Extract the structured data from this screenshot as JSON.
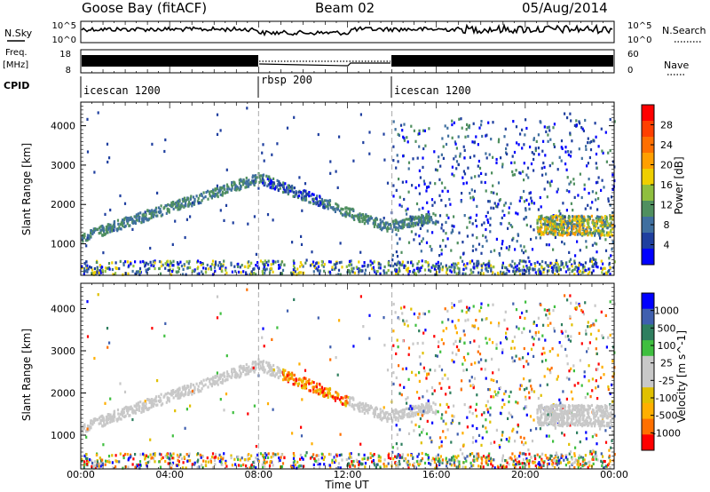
{
  "header": {
    "station": "Goose Bay (fitACF)",
    "beam": "Beam 02",
    "date": "05/Aug/2014"
  },
  "labels": {
    "nsky": "N.Sky",
    "freq": "Freq.",
    "mhz": "[MHz]",
    "cpid": "CPID",
    "nsearch": "N.Search",
    "nave": "Nave",
    "sky_top": "10^5",
    "sky_bot": "10^0",
    "search_top": "10^5",
    "search_bot": "10^0",
    "freq_top": "18",
    "freq_bot": "8",
    "nave_top": "60",
    "nave_bot": "0",
    "cpid_segments": [
      "icescan 1200",
      "rbsp 200",
      "icescan 1200"
    ],
    "xaxis_title": "Time UT"
  },
  "colors": {
    "power": [
      "#0000ff",
      "#1f3f9f",
      "#3f6f9f",
      "#4f8f5f",
      "#8fbf3f",
      "#efcf00",
      "#ff9f00",
      "#ff6f00",
      "#ff3f00",
      "#ff0000"
    ],
    "velocity": [
      "#ff0000",
      "#ff6f00",
      "#ffaf00",
      "#e0c000",
      "#c8c8c8",
      "#c8c8c8",
      "#3fbf3f",
      "#2f7f5f",
      "#3f5faf",
      "#0000ff"
    ]
  },
  "chart_data": [
    {
      "type": "heatmap",
      "title": "",
      "panel": "power",
      "xlabel": "",
      "ylabel": "Slant Range [km]",
      "xlim": [
        0,
        24
      ],
      "ylim": [
        200,
        4600
      ],
      "x_ticks": [
        "00:00",
        "04:00",
        "08:00",
        "12:00",
        "16:00",
        "20:00",
        "00:00"
      ],
      "y_ticks": [
        1000,
        2000,
        3000,
        4000
      ],
      "colorbar": {
        "label": "Power [dB]",
        "ticks": [
          "4",
          "8",
          "12",
          "16",
          "20",
          "24",
          "28"
        ],
        "range": [
          0,
          30
        ]
      }
    },
    {
      "type": "heatmap",
      "title": "",
      "panel": "velocity",
      "xlabel": "Time UT",
      "ylabel": "Slant Range [km]",
      "xlim": [
        0,
        24
      ],
      "ylim": [
        200,
        4600
      ],
      "x_ticks": [
        "00:00",
        "04:00",
        "08:00",
        "12:00",
        "16:00",
        "20:00",
        "00:00"
      ],
      "y_ticks": [
        1000,
        2000,
        3000,
        4000
      ],
      "colorbar": {
        "label": "Velocity [m s^-1]",
        "ticks": [
          "1000",
          "500",
          "100",
          "25",
          "-25",
          "-100",
          "-500",
          "-1000"
        ]
      }
    }
  ]
}
